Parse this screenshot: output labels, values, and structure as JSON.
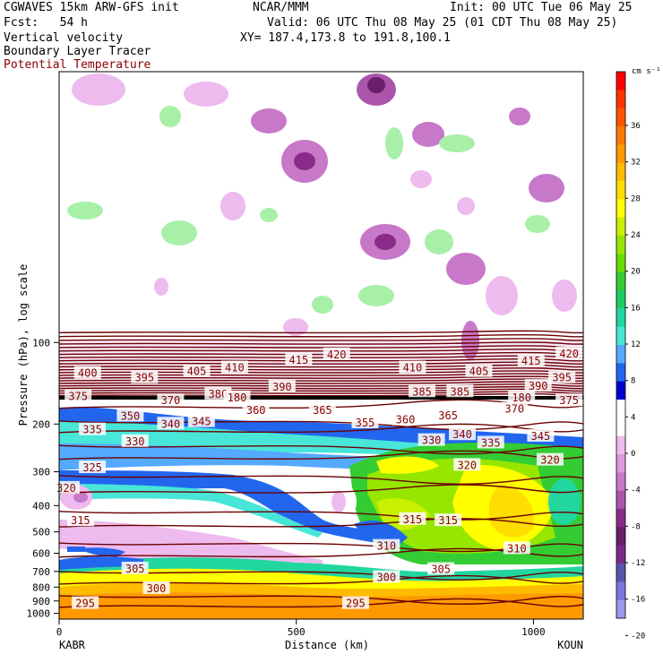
{
  "header": {
    "model": "CGWAVES 15km ARW-GFS init",
    "org": "NCAR/MMM",
    "init": "Init: 00 UTC Tue 06 May 25",
    "fcst": "Fcst:   54 h",
    "valid": "Valid: 06 UTC Thu 08 May 25 (01 CDT Thu 08 May 25)",
    "field1": "Vertical velocity",
    "field2": "Boundary Layer Tracer",
    "field3": "Potential Temperature",
    "xy": "XY= 187.4,173.8 to 191.8,100.1"
  },
  "colors": {
    "theta_contour": "#6b0000",
    "theta_label": "#8b0000",
    "field3_text": "#8b0000"
  },
  "chart_data": {
    "type": "heatmap",
    "xlabel": "Distance (km)",
    "ylabel": "Pressure (hPa), log scale",
    "xlim": [
      0,
      1105
    ],
    "ylim_hpa": [
      1050,
      10
    ],
    "y_scale": "log",
    "x_ticks": [
      0,
      500,
      1000
    ],
    "y_ticks": [
      100,
      200,
      300,
      400,
      500,
      600,
      700,
      800,
      900,
      1000
    ],
    "endpoint_left": "KABR",
    "endpoint_right": "KOUN",
    "colorbar": {
      "unit": "cm s⁻¹",
      "levels": [
        36,
        32,
        28,
        24,
        20,
        16,
        12,
        8,
        4,
        0,
        -4,
        -8,
        -12,
        -16,
        -20
      ],
      "colors": [
        "#ff0000",
        "#ff3300",
        "#ff5500",
        "#ff7700",
        "#ff9900",
        "#ffbb00",
        "#ffdd00",
        "#ffff00",
        "#c8f000",
        "#96e600",
        "#66dd00",
        "#33cc33",
        "#1ecc66",
        "#22d6a0",
        "#48e6d8",
        "#55aaff",
        "#2266ee",
        "#0000cc",
        "#ffffff",
        "#ffffff",
        "#eebbee",
        "#dd99dd",
        "#c878c8",
        "#aa55aa",
        "#8a2b8a",
        "#6a1f6a",
        "#7a2a88",
        "#5555aa",
        "#7777dd",
        "#9999ee"
      ]
    },
    "potential_temperature_labels": [
      {
        "x": 60,
        "p": 130,
        "v": "400"
      },
      {
        "x": 180,
        "p": 135,
        "v": "395"
      },
      {
        "x": 290,
        "p": 128,
        "v": "405"
      },
      {
        "x": 370,
        "p": 124,
        "v": "410"
      },
      {
        "x": 505,
        "p": 116,
        "v": "415"
      },
      {
        "x": 585,
        "p": 111,
        "v": "420"
      },
      {
        "x": 745,
        "p": 124,
        "v": "410"
      },
      {
        "x": 885,
        "p": 128,
        "v": "405"
      },
      {
        "x": 995,
        "p": 117,
        "v": "415"
      },
      {
        "x": 1075,
        "p": 110,
        "v": "420"
      },
      {
        "x": 470,
        "p": 146,
        "v": "390"
      },
      {
        "x": 1010,
        "p": 145,
        "v": "390"
      },
      {
        "x": 1060,
        "p": 135,
        "v": "395"
      },
      {
        "x": 765,
        "p": 152,
        "v": "385"
      },
      {
        "x": 845,
        "p": 152,
        "v": "385"
      },
      {
        "x": 40,
        "p": 158,
        "v": "375"
      },
      {
        "x": 235,
        "p": 164,
        "v": "370"
      },
      {
        "x": 335,
        "p": 155,
        "v": "380"
      },
      {
        "x": 375,
        "p": 160,
        "v": "180"
      },
      {
        "x": 960,
        "p": 176,
        "v": "370"
      },
      {
        "x": 975,
        "p": 160,
        "v": "180"
      },
      {
        "x": 1075,
        "p": 164,
        "v": "375"
      },
      {
        "x": 150,
        "p": 187,
        "v": "350"
      },
      {
        "x": 235,
        "p": 200,
        "v": "340"
      },
      {
        "x": 300,
        "p": 196,
        "v": "345"
      },
      {
        "x": 415,
        "p": 178,
        "v": "360"
      },
      {
        "x": 555,
        "p": 178,
        "v": "365"
      },
      {
        "x": 645,
        "p": 198,
        "v": "355"
      },
      {
        "x": 730,
        "p": 193,
        "v": "360"
      },
      {
        "x": 820,
        "p": 186,
        "v": "365"
      },
      {
        "x": 70,
        "p": 210,
        "v": "335"
      },
      {
        "x": 160,
        "p": 232,
        "v": "330"
      },
      {
        "x": 785,
        "p": 230,
        "v": "330"
      },
      {
        "x": 850,
        "p": 219,
        "v": "340"
      },
      {
        "x": 910,
        "p": 235,
        "v": "335"
      },
      {
        "x": 1015,
        "p": 222,
        "v": "345"
      },
      {
        "x": 70,
        "p": 290,
        "v": "325"
      },
      {
        "x": 860,
        "p": 284,
        "v": "320"
      },
      {
        "x": 1035,
        "p": 272,
        "v": "320"
      },
      {
        "x": 15,
        "p": 345,
        "v": "320"
      },
      {
        "x": 45,
        "p": 455,
        "v": "315"
      },
      {
        "x": 745,
        "p": 450,
        "v": "315"
      },
      {
        "x": 820,
        "p": 455,
        "v": "315"
      },
      {
        "x": 690,
        "p": 565,
        "v": "310"
      },
      {
        "x": 965,
        "p": 577,
        "v": "310"
      },
      {
        "x": 160,
        "p": 685,
        "v": "305"
      },
      {
        "x": 805,
        "p": 688,
        "v": "305"
      },
      {
        "x": 690,
        "p": 737,
        "v": "300"
      },
      {
        "x": 205,
        "p": 810,
        "v": "300"
      },
      {
        "x": 55,
        "p": 920,
        "v": "295"
      },
      {
        "x": 625,
        "p": 920,
        "v": "295"
      }
    ]
  }
}
